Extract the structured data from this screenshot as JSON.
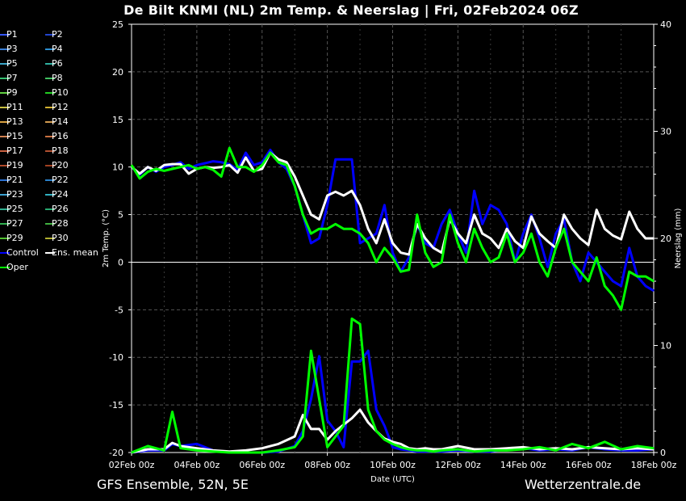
{
  "chart_data": {
    "type": "line",
    "title": "De Bilt KNMI  (NL)  2m Temp. & Neerslag | Fri, 02Feb2024 06Z",
    "xlabel": "Date (UTC)",
    "ylabel": "2m Temp. (°C)",
    "y2label": "Neerslag (mm)",
    "x_ticks": [
      "02Feb 00z",
      "04Feb 00z",
      "06Feb 00z",
      "08Feb 00z",
      "10Feb 00z",
      "12Feb 00z",
      "14Feb 00z",
      "16Feb 00z",
      "18Feb 00z"
    ],
    "xlim_days": [
      0,
      16
    ],
    "ylim": [
      -20,
      25
    ],
    "y_ticks": [
      -20,
      -15,
      -10,
      -5,
      0,
      5,
      10,
      15,
      20,
      25
    ],
    "y2lim": [
      0,
      40
    ],
    "y2_ticks": [
      0,
      10,
      20,
      30,
      40
    ],
    "grid": true,
    "legend_position": "left",
    "legend_entries": [
      {
        "name": "P1",
        "color": "#3355ff"
      },
      {
        "name": "P2",
        "color": "#2244cc"
      },
      {
        "name": "P3",
        "color": "#3a7fd6"
      },
      {
        "name": "P4",
        "color": "#2d8fd0"
      },
      {
        "name": "P5",
        "color": "#3aa5c8"
      },
      {
        "name": "P6",
        "color": "#2fb0a0"
      },
      {
        "name": "P7",
        "color": "#35c070"
      },
      {
        "name": "P8",
        "color": "#40c060"
      },
      {
        "name": "P9",
        "color": "#60d040"
      },
      {
        "name": "P10",
        "color": "#22cc22"
      },
      {
        "name": "P11",
        "color": "#c8c040"
      },
      {
        "name": "P12",
        "color": "#d0b030"
      },
      {
        "name": "P13",
        "color": "#d8a040"
      },
      {
        "name": "P14",
        "color": "#d09a50"
      },
      {
        "name": "P15",
        "color": "#d08050"
      },
      {
        "name": "P16",
        "color": "#c87040"
      },
      {
        "name": "P17",
        "color": "#c86040"
      },
      {
        "name": "P18",
        "color": "#b05030"
      },
      {
        "name": "P19",
        "color": "#b04828"
      },
      {
        "name": "P20",
        "color": "#a04020"
      },
      {
        "name": "P21",
        "color": "#2a6fd0"
      },
      {
        "name": "P22",
        "color": "#2a80c8"
      },
      {
        "name": "P23",
        "color": "#3aa0d0"
      },
      {
        "name": "P24",
        "color": "#30b0c0"
      },
      {
        "name": "P25",
        "color": "#30b090"
      },
      {
        "name": "P26",
        "color": "#28a870"
      },
      {
        "name": "P27",
        "color": "#30b050"
      },
      {
        "name": "P28",
        "color": "#40b040"
      },
      {
        "name": "P29",
        "color": "#50c030"
      },
      {
        "name": "P30",
        "color": "#b0b030"
      },
      {
        "name": "Control",
        "color": "#0000ff"
      },
      {
        "name": "Ens. mean",
        "color": "#ffffff"
      },
      {
        "name": "Oper",
        "color": "#00ff00"
      }
    ],
    "series": [
      {
        "name": "Control",
        "color": "#0000ff",
        "x": [
          0,
          0.25,
          0.5,
          0.75,
          1,
          1.25,
          1.5,
          1.75,
          2,
          2.25,
          2.5,
          2.75,
          3,
          3.25,
          3.5,
          3.75,
          4,
          4.25,
          4.5,
          4.75,
          5,
          5.25,
          5.5,
          5.75,
          6,
          6.25,
          6.5,
          6.75,
          7,
          7.25,
          7.5,
          7.75,
          8,
          8.25,
          8.5,
          8.75,
          9,
          9.25,
          9.5,
          9.75,
          10,
          10.25,
          10.5,
          10.75,
          11,
          11.25,
          11.5,
          11.75,
          12,
          12.25,
          12.5,
          12.75,
          13,
          13.25,
          13.5,
          13.75,
          14,
          14.25,
          14.5,
          14.75,
          15,
          15.25,
          15.5,
          15.75,
          16
        ],
        "y": [
          10,
          9.2,
          10,
          9.5,
          10,
          10.2,
          10.5,
          9.8,
          10.2,
          10.4,
          10.6,
          10.5,
          10.3,
          9.7,
          11.5,
          10.2,
          10.5,
          11.8,
          10.5,
          9.8,
          8,
          5,
          2,
          2.5,
          6,
          10.8,
          10.8,
          10.8,
          2,
          2.5,
          3,
          6,
          1,
          -1,
          0.5,
          4,
          2,
          1.5,
          4,
          5.5,
          3,
          1,
          7.5,
          4,
          6,
          5.5,
          4,
          0,
          3,
          5,
          2.5,
          -0.5,
          3,
          4.5,
          0,
          -2,
          1,
          0,
          -1,
          -2,
          -2.5,
          1.5,
          -1.5,
          -2.5,
          -3
        ]
      },
      {
        "name": "Ens. mean",
        "color": "#ffffff",
        "x": [
          0,
          0.25,
          0.5,
          0.75,
          1,
          1.25,
          1.5,
          1.75,
          2,
          2.25,
          2.5,
          2.75,
          3,
          3.25,
          3.5,
          3.75,
          4,
          4.25,
          4.5,
          4.75,
          5,
          5.25,
          5.5,
          5.75,
          6,
          6.25,
          6.5,
          6.75,
          7,
          7.25,
          7.5,
          7.75,
          8,
          8.25,
          8.5,
          8.75,
          9,
          9.25,
          9.5,
          9.75,
          10,
          10.25,
          10.5,
          10.75,
          11,
          11.25,
          11.5,
          11.75,
          12,
          12.25,
          12.5,
          12.75,
          13,
          13.25,
          13.5,
          13.75,
          14,
          14.25,
          14.5,
          14.75,
          15,
          15.25,
          15.5,
          15.75,
          16
        ],
        "y": [
          10,
          9.3,
          10,
          9.6,
          10.2,
          10.3,
          10.3,
          9.3,
          9.8,
          10,
          9.9,
          10,
          10.2,
          9.4,
          11,
          9.6,
          9.8,
          11.5,
          10.8,
          10.5,
          9,
          7,
          5,
          4.5,
          7,
          7.4,
          7,
          7.5,
          6,
          3.5,
          2,
          4.5,
          2,
          1,
          0.8,
          4,
          2.5,
          1.5,
          1,
          4.5,
          3,
          2,
          5,
          3,
          2.5,
          1.5,
          3.5,
          2.2,
          1.5,
          4.8,
          3,
          2.2,
          1.5,
          5,
          3.5,
          2.5,
          1.8,
          5.5,
          3.5,
          2.8,
          2.4,
          5.3,
          3.5,
          2.5,
          2.5
        ]
      },
      {
        "name": "Oper",
        "color": "#00ff00",
        "x": [
          0,
          0.25,
          0.5,
          0.75,
          1,
          1.25,
          1.5,
          1.75,
          2,
          2.25,
          2.5,
          2.75,
          3,
          3.25,
          3.5,
          3.75,
          4,
          4.25,
          4.5,
          4.75,
          5,
          5.25,
          5.5,
          5.75,
          6,
          6.25,
          6.5,
          6.75,
          7,
          7.25,
          7.5,
          7.75,
          8,
          8.25,
          8.5,
          8.75,
          9,
          9.25,
          9.5,
          9.75,
          10,
          10.25,
          10.5,
          10.75,
          11,
          11.25,
          11.5,
          11.75,
          12,
          12.25,
          12.5,
          12.75,
          13,
          13.25,
          13.5,
          13.75,
          14,
          14.25,
          14.5,
          14.75,
          15,
          15.25,
          15.5,
          15.75,
          16
        ],
        "y": [
          10.2,
          8.8,
          9.5,
          9.8,
          9.6,
          9.8,
          10,
          10.2,
          9.8,
          10,
          9.7,
          9,
          12,
          10,
          10,
          9.5,
          10.2,
          11.5,
          10.5,
          10.2,
          8,
          5,
          3,
          3.5,
          3.5,
          4,
          3.5,
          3.5,
          3,
          2,
          0,
          1.5,
          0.5,
          -1,
          -0.8,
          5,
          1,
          -0.5,
          0,
          5,
          2,
          0,
          3.5,
          1.5,
          0,
          0.5,
          3,
          0,
          1,
          3,
          0,
          -1.5,
          1.5,
          3.5,
          0,
          -1,
          -2,
          0.5,
          -2.5,
          -3.5,
          -5,
          -1,
          -1.5,
          -1.5,
          -2
        ]
      }
    ],
    "precip_series": [
      {
        "name": "Control",
        "color": "#0000ff",
        "x": [
          0,
          0.5,
          1,
          1.25,
          1.5,
          2,
          2.5,
          3,
          3.5,
          4,
          4.5,
          5,
          5.25,
          5.5,
          5.75,
          6,
          6.25,
          6.5,
          6.75,
          7,
          7.25,
          7.5,
          7.75,
          8,
          8.25,
          8.5,
          8.75,
          9,
          9.25,
          9.5,
          10,
          10.5,
          11,
          11.5,
          12,
          12.5,
          13,
          13.5,
          14,
          14.5,
          15,
          15.5,
          16
        ],
        "y": [
          0,
          0.2,
          0.2,
          0.8,
          0.6,
          0.8,
          0.2,
          0,
          0,
          0,
          0.1,
          0.6,
          2,
          5,
          9,
          3,
          2,
          0.5,
          8.5,
          8.5,
          9.5,
          4,
          2.5,
          0.5,
          0.3,
          0.2,
          0.1,
          0.1,
          0.1,
          0.1,
          0.2,
          0.1,
          0.1,
          0.3,
          0.4,
          0.2,
          0.3,
          0.2,
          0.5,
          0.3,
          0.2,
          0.2,
          0.3
        ]
      },
      {
        "name": "Ens. mean",
        "color": "#ffffff",
        "x": [
          0,
          0.5,
          1,
          1.25,
          1.5,
          2,
          2.5,
          3,
          3.5,
          4,
          4.5,
          5,
          5.25,
          5.5,
          5.75,
          6,
          6.25,
          6.5,
          6.75,
          7,
          7.25,
          7.5,
          7.75,
          8,
          8.25,
          8.5,
          8.75,
          9,
          9.25,
          9.5,
          10,
          10.5,
          11,
          11.5,
          12,
          12.5,
          13,
          13.5,
          14,
          14.5,
          15,
          15.5,
          16
        ],
        "y": [
          0,
          0.3,
          0.3,
          0.9,
          0.6,
          0.4,
          0.2,
          0.1,
          0.2,
          0.4,
          0.8,
          1.5,
          3.5,
          2.2,
          2.2,
          1.2,
          2,
          2.6,
          3.2,
          4,
          2.8,
          2,
          1.3,
          1,
          0.8,
          0.4,
          0.3,
          0.4,
          0.3,
          0.3,
          0.6,
          0.3,
          0.3,
          0.4,
          0.5,
          0.3,
          0.4,
          0.3,
          0.5,
          0.4,
          0.3,
          0.4,
          0.3
        ]
      },
      {
        "name": "Oper",
        "color": "#00ff00",
        "x": [
          0,
          0.5,
          1,
          1.25,
          1.5,
          2,
          2.5,
          3,
          3.5,
          4,
          4.5,
          5,
          5.25,
          5.5,
          5.75,
          6,
          6.25,
          6.5,
          6.75,
          7,
          7.25,
          7.5,
          7.75,
          8,
          8.25,
          8.5,
          8.75,
          9,
          9.25,
          9.5,
          10,
          10.5,
          11,
          11.5,
          12,
          12.5,
          13,
          13.5,
          14,
          14.5,
          15,
          15.5,
          16
        ],
        "y": [
          0,
          0.6,
          0.2,
          3.8,
          0.4,
          0.2,
          0.1,
          0,
          0,
          0,
          0.2,
          0.5,
          1.5,
          9.5,
          5,
          0.5,
          1.5,
          2.5,
          12.5,
          12,
          4,
          2,
          1.2,
          0.8,
          0.5,
          0.3,
          0.2,
          0.2,
          0.1,
          0.2,
          0.3,
          0.1,
          0.2,
          0.2,
          0.3,
          0.5,
          0.2,
          0.8,
          0.4,
          1,
          0.3,
          0.6,
          0.4
        ]
      }
    ]
  },
  "footer": {
    "left": "GFS Ensemble, 52N, 5E",
    "right": "Wetterzentrale.de"
  }
}
